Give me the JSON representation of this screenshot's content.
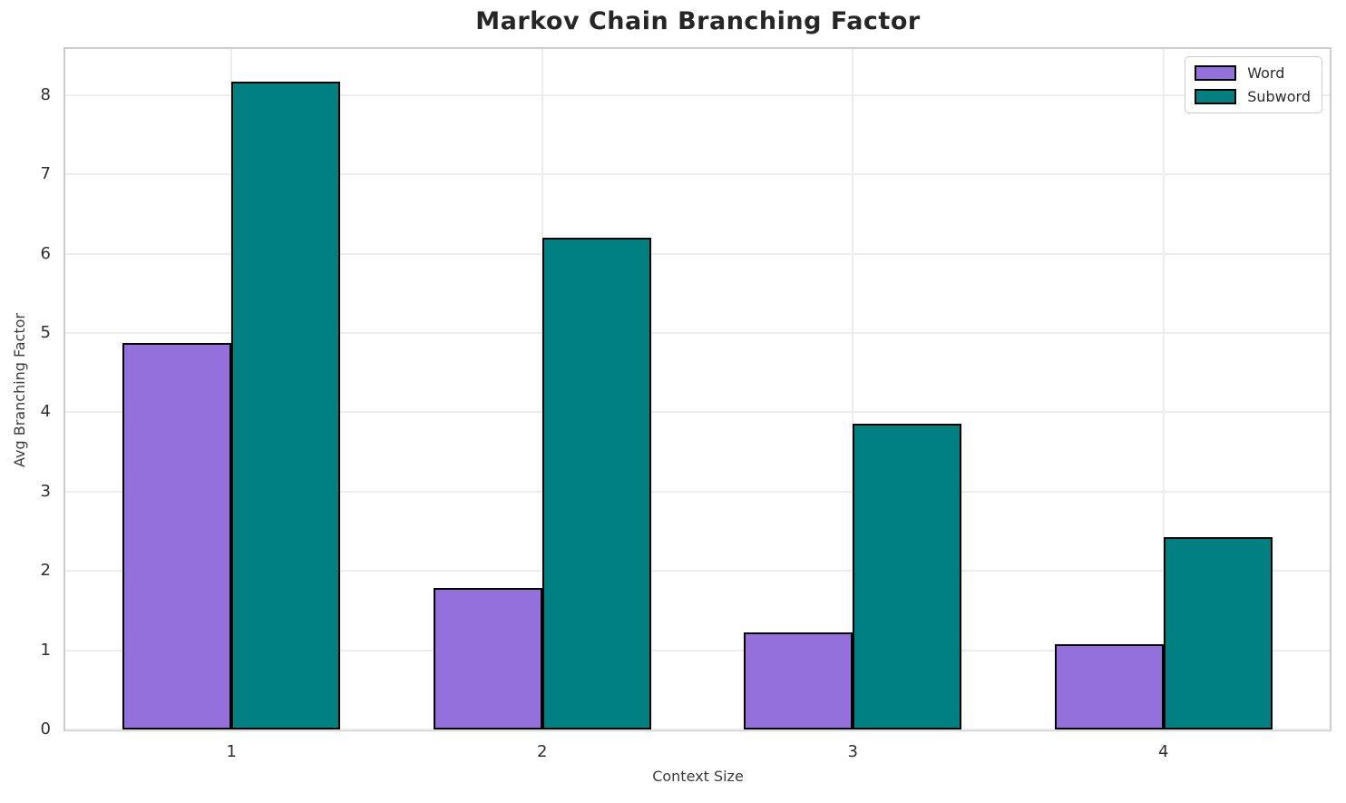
{
  "chart_data": {
    "type": "bar",
    "title": "Markov Chain Branching Factor",
    "xlabel": "Context Size",
    "ylabel": "Avg Branching Factor",
    "categories": [
      "1",
      "2",
      "3",
      "4"
    ],
    "x": [
      1,
      2,
      3,
      4
    ],
    "series": [
      {
        "name": "Word",
        "color": "#9370DB",
        "values": [
          4.87,
          1.78,
          1.22,
          1.08
        ]
      },
      {
        "name": "Subword",
        "color": "#008080",
        "values": [
          8.17,
          6.2,
          3.86,
          2.43
        ]
      }
    ],
    "yticks": [
      0,
      1,
      2,
      3,
      4,
      5,
      6,
      7,
      8
    ],
    "ylim": [
      0,
      8.58
    ],
    "xlim": [
      0.465,
      4.535
    ],
    "bar_width": 0.35,
    "grid": true,
    "legend_position": "upper right",
    "colors": {
      "bar_edge": "#000000",
      "grid": "#ececec",
      "spine": "#cccccc",
      "title_text": "#262626",
      "label_text": "#3b3b3b",
      "tick_text": "#2e2e2e"
    }
  }
}
